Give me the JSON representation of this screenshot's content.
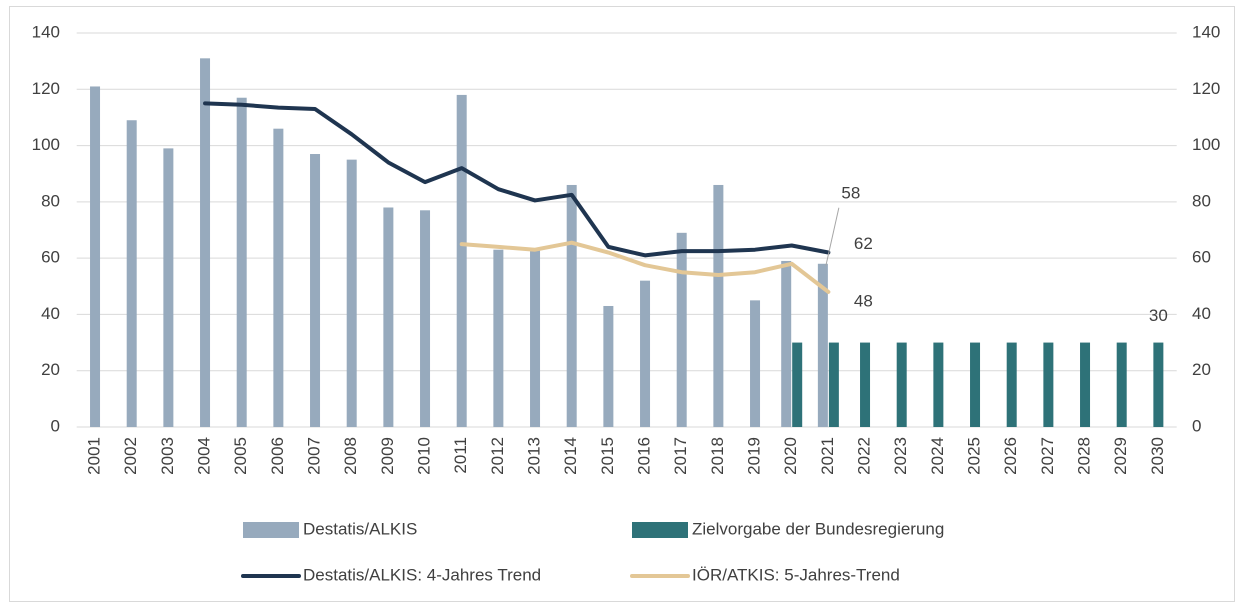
{
  "chart_data": {
    "type": "bar",
    "categories": [
      "2001",
      "2002",
      "2003",
      "2004",
      "2005",
      "2006",
      "2007",
      "2008",
      "2009",
      "2010",
      "2011",
      "2012",
      "2013",
      "2014",
      "2015",
      "2016",
      "2017",
      "2018",
      "2019",
      "2020",
      "2021",
      "2022",
      "2023",
      "2024",
      "2025",
      "2026",
      "2027",
      "2028",
      "2029",
      "2030"
    ],
    "series": [
      {
        "name": "Destatis/ALKIS",
        "type": "bar",
        "color": "#97aabd",
        "values": [
          121,
          109,
          99,
          131,
          117,
          106,
          97,
          95,
          78,
          77,
          118,
          63,
          63,
          86,
          43,
          52,
          69,
          86,
          45,
          59,
          58,
          null,
          null,
          null,
          null,
          null,
          null,
          null,
          null,
          null
        ],
        "value_labels": [
          null,
          null,
          null,
          null,
          null,
          null,
          null,
          null,
          null,
          null,
          null,
          null,
          null,
          null,
          null,
          null,
          null,
          null,
          null,
          null,
          "58",
          null,
          null,
          null,
          null,
          null,
          null,
          null,
          null,
          null
        ]
      },
      {
        "name": "Zielvorgabe der Bundesregierung",
        "type": "bar",
        "color": "#2e7278",
        "values": [
          null,
          null,
          null,
          null,
          null,
          null,
          null,
          null,
          null,
          null,
          null,
          null,
          null,
          null,
          null,
          null,
          null,
          null,
          null,
          30,
          30,
          30,
          30,
          30,
          30,
          30,
          30,
          30,
          30,
          30
        ],
        "value_labels": [
          null,
          null,
          null,
          null,
          null,
          null,
          null,
          null,
          null,
          null,
          null,
          null,
          null,
          null,
          null,
          null,
          null,
          null,
          null,
          null,
          null,
          null,
          null,
          null,
          null,
          null,
          null,
          null,
          null,
          "30"
        ]
      },
      {
        "name": "Destatis/ALKIS: 4-Jahres Trend",
        "type": "line",
        "color": "#1f3550",
        "values": [
          null,
          null,
          null,
          115,
          114.5,
          113.5,
          113,
          104,
          94,
          87,
          92,
          84.5,
          80.5,
          82.5,
          64,
          61,
          62.5,
          62.5,
          63,
          64.5,
          62,
          null,
          null,
          null,
          null,
          null,
          null,
          null,
          null,
          null
        ],
        "value_labels": [
          null,
          null,
          null,
          null,
          null,
          null,
          null,
          null,
          null,
          null,
          null,
          null,
          null,
          null,
          null,
          null,
          null,
          null,
          null,
          null,
          "62",
          null,
          null,
          null,
          null,
          null,
          null,
          null,
          null,
          null
        ]
      },
      {
        "name": "IÖR/ATKIS: 5-Jahres-Trend",
        "type": "line",
        "color": "#e3c796",
        "values": [
          null,
          null,
          null,
          null,
          null,
          null,
          null,
          null,
          null,
          null,
          65,
          64,
          63,
          65.5,
          62,
          57.5,
          55,
          54,
          55,
          58,
          48,
          null,
          null,
          null,
          null,
          null,
          null,
          null,
          null,
          null
        ],
        "value_labels": [
          null,
          null,
          null,
          null,
          null,
          null,
          null,
          null,
          null,
          null,
          null,
          null,
          null,
          null,
          null,
          null,
          null,
          null,
          null,
          null,
          "48",
          null,
          null,
          null,
          null,
          null,
          null,
          null,
          null,
          null
        ]
      }
    ],
    "ylim": [
      0,
      140
    ],
    "yticks": [
      0,
      20,
      40,
      60,
      80,
      100,
      120,
      140
    ],
    "y2lim": [
      0,
      140
    ],
    "y2ticks": [
      0,
      20,
      40,
      60,
      80,
      100,
      120,
      140
    ],
    "grid": true,
    "legend": "bottom"
  }
}
